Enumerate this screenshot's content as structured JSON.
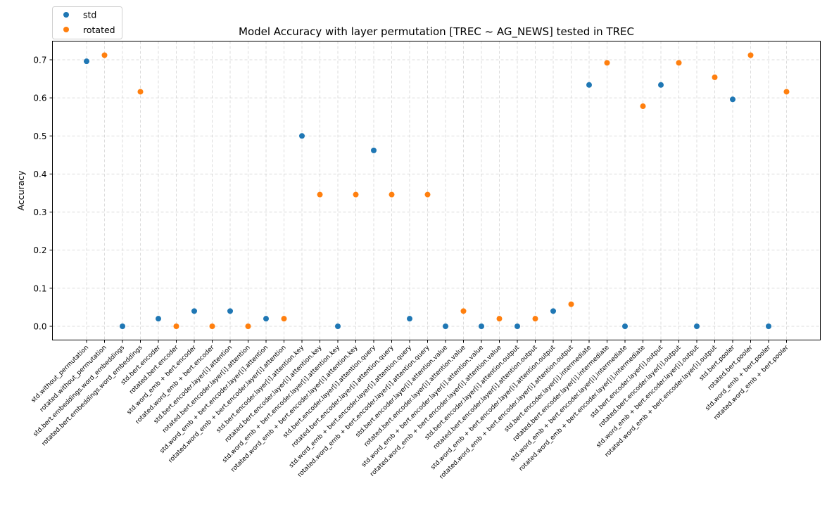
{
  "chart_data": {
    "type": "scatter",
    "title": "Model Accuracy with layer permutation [TREC ~ AG_NEWS] tested in TREC",
    "xlabel": "",
    "ylabel": "Accuracy",
    "ylim": [
      -0.036,
      0.75
    ],
    "yticks": [
      0.0,
      0.1,
      0.2,
      0.3,
      0.4,
      0.5,
      0.6,
      0.7
    ],
    "ytick_labels": [
      "0.0",
      "0.1",
      "0.2",
      "0.3",
      "0.4",
      "0.5",
      "0.6",
      "0.7"
    ],
    "grid": true,
    "legend_position": "top-left outside",
    "categories": [
      "std.without_permutation",
      "rotated.without_permutation",
      "std.bert.embeddings.word_embeddings",
      "rotated.bert.embeddings.word_embeddings",
      "std.bert.encoder",
      "rotated.bert.encoder",
      "std.word_emb + bert.encoder",
      "rotated.word_emb + bert.encoder",
      "std.bert.encoder.layer[i].attention",
      "rotated.bert.encoder.layer[i].attention",
      "std.word_emb + bert.encoder.layer[i].attention",
      "rotated.word_emb + bert.encoder.layer[i].attention",
      "std.bert.encoder.layer[i].attention.key",
      "rotated.bert.encoder.layer[i].attention.key",
      "std.word_emb + bert.encoder.layer[i].attention.key",
      "rotated.word_emb + bert.encoder.layer[i].attention.key",
      "std.bert.encoder.layer[i].attention.query",
      "rotated.bert.encoder.layer[i].attention.query",
      "std.word_emb + bert.encoder.layer[i].attention.query",
      "rotated.word_emb + bert.encoder.layer[i].attention.query",
      "std.bert.encoder.layer[i].attention.value",
      "rotated.bert.encoder.layer[i].attention.value",
      "std.word_emb + bert.encoder.layer[i].attention.value",
      "rotated.word_emb + bert.encoder.layer[i].attention.value",
      "std.bert.encoder.layer[i].attention.output",
      "rotated.bert.encoder.layer[i].attention.output",
      "std.word_emb + bert.encoder.layer[i].attention.output",
      "rotated.word_emb + bert.encoder.layer[i].attention.output",
      "std.bert.encoder.layer[i].intermediate",
      "rotated.bert.encoder.layer[i].intermediate",
      "std.word_emb + bert.encoder.layer[i].intermediate",
      "rotated.word_emb + bert.encoder.layer[i].intermediate",
      "std.bert.encoder.layer[i].output",
      "rotated.bert.encoder.layer[i].output",
      "std.word_emb + bert.encoder.layer[i].output",
      "rotated.word_emb + bert.encoder.layer[i].output",
      "std.bert.pooler",
      "rotated.bert.pooler",
      "std.word_emb + bert.pooler",
      "rotated.word_emb + bert.pooler"
    ],
    "series": [
      {
        "name": "std",
        "color": "#1f77b4",
        "indices": [
          0,
          2,
          4,
          6,
          8,
          10,
          12,
          14,
          16,
          18,
          20,
          22,
          24,
          26,
          28,
          30,
          32,
          34,
          36,
          38
        ],
        "values": [
          0.696,
          0.0,
          0.02,
          0.04,
          0.04,
          0.02,
          0.5,
          0.0,
          0.462,
          0.02,
          0.0,
          0.0,
          0.0,
          0.04,
          0.634,
          0.0,
          0.634,
          0.0,
          0.596,
          0.0
        ]
      },
      {
        "name": "rotated",
        "color": "#ff7f0e",
        "indices": [
          1,
          3,
          5,
          7,
          9,
          11,
          13,
          15,
          17,
          19,
          21,
          23,
          25,
          27,
          29,
          31,
          33,
          35,
          37,
          39
        ],
        "values": [
          0.712,
          0.616,
          0.0,
          0.0,
          0.0,
          0.02,
          0.346,
          0.346,
          0.346,
          0.346,
          0.04,
          0.02,
          0.02,
          0.058,
          0.692,
          0.578,
          0.692,
          0.654,
          0.712,
          0.616
        ]
      }
    ]
  }
}
